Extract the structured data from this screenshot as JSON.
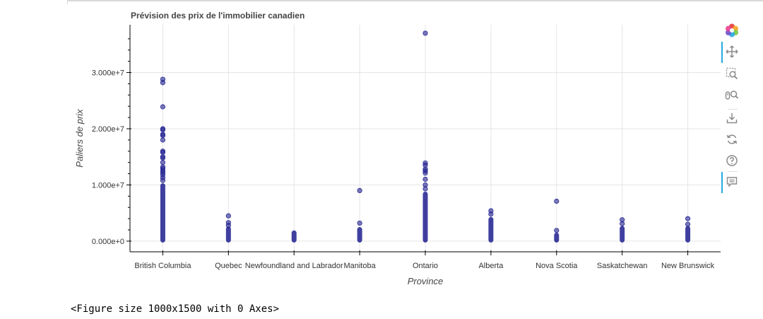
{
  "chart_data": {
    "type": "scatter",
    "title": "Prévision des prix de l'immobilier canadien",
    "xlabel": "Province",
    "ylabel": "Paliers de prix",
    "categories": [
      "British Columbia",
      "Quebec",
      "Newfoundland and Labrador",
      "Manitoba",
      "Ontario",
      "Alberta",
      "Nova Scotia",
      "Saskatchewan",
      "New Brunswick"
    ],
    "ylim": [
      -1900000,
      38500000
    ],
    "yticks": [
      0,
      10000000,
      20000000,
      30000000
    ],
    "ytick_labels": [
      "0.000e+0",
      "1.000e+7",
      "2.000e+7",
      "3.000e+7"
    ],
    "grid": true,
    "marker_color": "#1f1f8f",
    "series": [
      {
        "category": "British Columbia",
        "dense_range": [
          0,
          10300000
        ],
        "points": [
          28800000,
          28200000,
          23900000,
          20000000,
          19800000,
          19000000,
          18800000,
          18000000,
          16000000,
          15800000,
          15000000,
          14800000,
          14000000,
          13200000,
          12900000,
          12500000,
          12200000,
          11800000,
          11300000,
          10800000
        ]
      },
      {
        "category": "Quebec",
        "dense_range": [
          0,
          2600000
        ],
        "points": [
          4500000,
          3300000,
          2800000
        ]
      },
      {
        "category": "Newfoundland and Labrador",
        "dense_range": [
          0,
          1900000
        ],
        "points": []
      },
      {
        "category": "Manitoba",
        "dense_range": [
          0,
          2500000
        ],
        "points": [
          9000000,
          3200000
        ]
      },
      {
        "category": "Ontario",
        "dense_range": [
          0,
          8800000
        ],
        "points": [
          37000000,
          13900000,
          13500000,
          12800000,
          12500000,
          12100000,
          11000000,
          10000000,
          9300000
        ]
      },
      {
        "category": "Alberta",
        "dense_range": [
          0,
          4300000
        ],
        "points": [
          5400000,
          4800000
        ]
      },
      {
        "category": "Nova Scotia",
        "dense_range": [
          0,
          1500000
        ],
        "points": [
          7100000,
          1900000
        ]
      },
      {
        "category": "Saskatchewan",
        "dense_range": [
          0,
          2700000
        ],
        "points": [
          3800000,
          3100000
        ]
      },
      {
        "category": "New Brunswick",
        "dense_range": [
          0,
          2700000
        ],
        "points": [
          4000000,
          3000000
        ]
      }
    ]
  },
  "toolbar": {
    "tools": [
      {
        "name": "bokeh-logo-icon",
        "active": false
      },
      {
        "name": "pan-tool-icon",
        "active": true
      },
      {
        "name": "box-zoom-tool-icon",
        "active": false
      },
      {
        "name": "wheel-zoom-tool-icon",
        "active": false
      },
      {
        "name": "save-tool-icon",
        "active": false
      },
      {
        "name": "reset-tool-icon",
        "active": false
      },
      {
        "name": "help-tool-icon",
        "active": false
      },
      {
        "name": "hover-tool-icon",
        "active": true
      }
    ]
  },
  "output": {
    "text": "<Figure size 1000x1500 with 0 Axes>"
  }
}
